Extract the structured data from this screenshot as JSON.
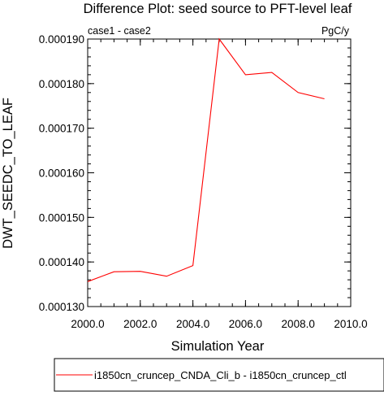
{
  "chart_data": {
    "type": "line",
    "title": "Difference Plot: seed source to PFT-level leaf",
    "subtitle_left": "case1 - case2",
    "subtitle_right": "PgC/y",
    "xlabel": "Simulation Year",
    "ylabel": "DWT_SEEDC_TO_LEAF",
    "xlim": [
      2000.0,
      2010.0
    ],
    "ylim": [
      0.00013,
      0.00019
    ],
    "xticks": [
      2000.0,
      2002.0,
      2004.0,
      2006.0,
      2008.0,
      2010.0
    ],
    "xtick_labels": [
      "2000.0",
      "2002.0",
      "2004.0",
      "2006.0",
      "2008.0",
      "2010.0"
    ],
    "yticks": [
      0.00013,
      0.00014,
      0.00015,
      0.00016,
      0.00017,
      0.00018,
      0.00019
    ],
    "ytick_labels": [
      "0.000130",
      "0.000140",
      "0.000150",
      "0.000160",
      "0.000170",
      "0.000180",
      "0.000190"
    ],
    "grid": false,
    "legend_position": "bottom",
    "series": [
      {
        "name": "i1850cn_cruncep_CNDA_Cli_b - i1850cn_cruncep_ctl",
        "color": "#ff0000",
        "x": [
          2000,
          2001,
          2002,
          2003,
          2004,
          2005,
          2006,
          2007,
          2008,
          2009
        ],
        "y": [
          0.0001356,
          0.0001378,
          0.0001379,
          0.0001368,
          0.0001392,
          0.00019,
          0.000182,
          0.0001825,
          0.000178,
          0.0001766
        ]
      }
    ]
  }
}
